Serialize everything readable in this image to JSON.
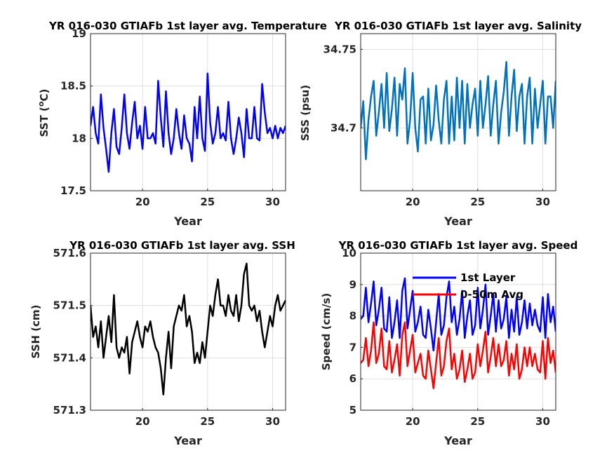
{
  "chart_data": [
    {
      "type": "line",
      "title": "YR 016-030 GTIAFb 1st layer avg. Temperature",
      "xlabel": "Year",
      "ylabel": "SST (",
      "ylabel_sup": "o",
      "ylabel_tail": "C)",
      "xlim": [
        16,
        31
      ],
      "ylim": [
        17.5,
        19
      ],
      "xticks": [
        20,
        25,
        30
      ],
      "yticks": [
        17.5,
        18,
        18.5,
        19
      ],
      "ytick_labels": [
        "17.5",
        "18",
        "18.5",
        "19"
      ],
      "grid": true,
      "series": [
        {
          "color": "#0000ff",
          "x": [
            16,
            16.2,
            16.4,
            16.6,
            16.8,
            17.0,
            17.2,
            17.4,
            17.6,
            17.8,
            18.0,
            18.2,
            18.4,
            18.6,
            18.8,
            19.0,
            19.2,
            19.4,
            19.6,
            19.8,
            20.0,
            20.2,
            20.4,
            20.6,
            20.8,
            21.0,
            21.2,
            21.4,
            21.6,
            21.8,
            22.0,
            22.2,
            22.4,
            22.6,
            22.8,
            23.0,
            23.2,
            23.4,
            23.6,
            23.8,
            24.0,
            24.2,
            24.4,
            24.6,
            24.8,
            25.0,
            25.2,
            25.4,
            25.6,
            25.8,
            26.0,
            26.2,
            26.4,
            26.6,
            26.8,
            27.0,
            27.2,
            27.4,
            27.6,
            27.8,
            28.0,
            28.2,
            28.4,
            28.6,
            28.8,
            29.0,
            29.2,
            29.4,
            29.6,
            29.8,
            30.0,
            30.2,
            30.4,
            30.6,
            30.8,
            31.0
          ],
          "y": [
            18.12,
            18.3,
            18.05,
            17.95,
            18.42,
            18.1,
            17.9,
            17.68,
            18.05,
            18.28,
            17.92,
            17.85,
            18.1,
            18.42,
            18.05,
            17.9,
            18.15,
            18.35,
            18.0,
            18.12,
            17.9,
            18.3,
            18.0,
            18.0,
            18.05,
            17.95,
            18.55,
            18.2,
            17.92,
            18.45,
            18.05,
            17.85,
            18.0,
            18.28,
            18.05,
            17.9,
            18.22,
            18.0,
            17.95,
            17.78,
            18.3,
            18.0,
            18.4,
            18.0,
            17.88,
            18.62,
            18.15,
            17.95,
            18.05,
            18.3,
            18.0,
            18.05,
            17.98,
            18.35,
            18.0,
            17.85,
            18.0,
            18.2,
            18.05,
            17.82,
            18.28,
            18.0,
            18.0,
            18.3,
            18.0,
            17.98,
            18.52,
            18.25,
            18.05,
            18.1,
            18.0,
            18.12,
            18.0,
            18.1,
            18.05,
            18.12
          ]
        }
      ]
    },
    {
      "type": "line",
      "title": "YR 016-030 GTIAFb 1st layer avg. Salinity",
      "xlabel": "Year",
      "ylabel": "SSS (psu)",
      "xlim": [
        16,
        31
      ],
      "ylim": [
        34.66,
        34.76
      ],
      "xticks": [
        20,
        25,
        30
      ],
      "yticks": [
        34.7,
        34.75
      ],
      "ytick_labels": [
        "34.7",
        "34.75"
      ],
      "grid": true,
      "series": [
        {
          "color": "#0072bd",
          "x": [
            16,
            16.2,
            16.4,
            16.6,
            16.8,
            17.0,
            17.2,
            17.4,
            17.6,
            17.8,
            18.0,
            18.2,
            18.4,
            18.6,
            18.8,
            19.0,
            19.2,
            19.4,
            19.6,
            19.8,
            20.0,
            20.2,
            20.4,
            20.6,
            20.8,
            21.0,
            21.2,
            21.4,
            21.6,
            21.8,
            22.0,
            22.2,
            22.4,
            22.6,
            22.8,
            23.0,
            23.2,
            23.4,
            23.6,
            23.8,
            24.0,
            24.2,
            24.4,
            24.6,
            24.8,
            25.0,
            25.2,
            25.4,
            25.6,
            25.8,
            26.0,
            26.2,
            26.4,
            26.6,
            26.8,
            27.0,
            27.2,
            27.4,
            27.6,
            27.8,
            28.0,
            28.2,
            28.4,
            28.6,
            28.8,
            29.0,
            29.2,
            29.4,
            29.6,
            29.8,
            30.0,
            30.2,
            30.4,
            30.6,
            30.8,
            31.0
          ],
          "y": [
            34.7,
            34.717,
            34.68,
            34.705,
            34.72,
            34.73,
            34.695,
            34.71,
            34.728,
            34.7,
            34.735,
            34.698,
            34.712,
            34.732,
            34.695,
            34.728,
            34.718,
            34.738,
            34.69,
            34.705,
            34.735,
            34.7,
            34.685,
            34.718,
            34.72,
            34.69,
            34.725,
            34.692,
            34.702,
            34.727,
            34.705,
            34.69,
            34.718,
            34.73,
            34.69,
            34.72,
            34.692,
            34.732,
            34.7,
            34.73,
            34.69,
            34.728,
            34.7,
            34.715,
            34.725,
            34.695,
            34.73,
            34.7,
            34.715,
            34.733,
            34.695,
            34.715,
            34.73,
            34.69,
            34.71,
            34.723,
            34.742,
            34.695,
            34.72,
            34.737,
            34.698,
            34.72,
            34.728,
            34.69,
            34.72,
            34.732,
            34.69,
            34.725,
            34.7,
            34.715,
            34.73,
            34.69,
            34.72,
            34.72,
            34.7,
            34.73
          ]
        }
      ]
    },
    {
      "type": "line",
      "title": "YR 016-030 GTIAFb 1st layer avg. SSH",
      "xlabel": "Year",
      "ylabel": "SSH (cm)",
      "xlim": [
        16,
        31
      ],
      "ylim": [
        571.3,
        571.6
      ],
      "xticks": [
        20,
        25,
        30
      ],
      "yticks": [
        571.3,
        571.4,
        571.5,
        571.6
      ],
      "ytick_labels": [
        "571.3",
        "571.4",
        "571.5",
        "571.6"
      ],
      "grid": true,
      "series": [
        {
          "color": "#000000",
          "x": [
            16,
            16.2,
            16.4,
            16.6,
            16.8,
            17.0,
            17.2,
            17.4,
            17.6,
            17.8,
            18.0,
            18.2,
            18.4,
            18.6,
            18.8,
            19.0,
            19.2,
            19.4,
            19.6,
            19.8,
            20.0,
            20.2,
            20.4,
            20.6,
            20.8,
            21.0,
            21.2,
            21.4,
            21.6,
            21.8,
            22.0,
            22.2,
            22.4,
            22.6,
            22.8,
            23.0,
            23.2,
            23.4,
            23.6,
            23.8,
            24.0,
            24.2,
            24.4,
            24.6,
            24.8,
            25.0,
            25.2,
            25.4,
            25.6,
            25.8,
            26.0,
            26.2,
            26.4,
            26.6,
            26.8,
            27.0,
            27.2,
            27.4,
            27.6,
            27.8,
            28.0,
            28.2,
            28.4,
            28.6,
            28.8,
            29.0,
            29.2,
            29.4,
            29.6,
            29.8,
            30.0,
            30.2,
            30.4,
            30.6,
            30.8,
            31.0
          ],
          "y": [
            571.5,
            571.44,
            571.46,
            571.42,
            571.47,
            571.4,
            571.44,
            571.48,
            571.43,
            571.52,
            571.42,
            571.4,
            571.42,
            571.41,
            571.44,
            571.37,
            571.43,
            571.45,
            571.47,
            571.44,
            571.42,
            571.46,
            571.45,
            571.47,
            571.44,
            571.42,
            571.41,
            571.38,
            571.33,
            571.4,
            571.45,
            571.38,
            571.46,
            571.48,
            571.5,
            571.49,
            571.52,
            571.46,
            571.48,
            571.45,
            571.39,
            571.41,
            571.39,
            571.43,
            571.4,
            571.45,
            571.5,
            571.48,
            571.52,
            571.55,
            571.5,
            571.5,
            571.48,
            571.52,
            571.49,
            571.48,
            571.52,
            571.47,
            571.5,
            571.56,
            571.58,
            571.5,
            571.49,
            571.5,
            571.47,
            571.49,
            571.45,
            571.42,
            571.45,
            571.48,
            571.46,
            571.5,
            571.52,
            571.49,
            571.5,
            571.51
          ]
        }
      ]
    },
    {
      "type": "line",
      "title": "YR 016-030 GTIAFb 1st layer avg. Speed",
      "xlabel": "Year",
      "ylabel": "Speed (cm/s)",
      "xlim": [
        16,
        31
      ],
      "ylim": [
        5,
        10
      ],
      "xticks": [
        20,
        25,
        30
      ],
      "yticks": [
        5,
        6,
        7,
        8,
        9,
        10
      ],
      "ytick_labels": [
        "5",
        "6",
        "7",
        "8",
        "9",
        "10"
      ],
      "grid": true,
      "legend": "top",
      "series": [
        {
          "name": "1st Layer",
          "color": "#0000ff",
          "x": [
            16,
            16.2,
            16.4,
            16.6,
            16.8,
            17.0,
            17.2,
            17.4,
            17.6,
            17.8,
            18.0,
            18.2,
            18.4,
            18.6,
            18.8,
            19.0,
            19.2,
            19.4,
            19.6,
            19.8,
            20.0,
            20.2,
            20.4,
            20.6,
            20.8,
            21.0,
            21.2,
            21.4,
            21.6,
            21.8,
            22.0,
            22.2,
            22.4,
            22.6,
            22.8,
            23.0,
            23.2,
            23.4,
            23.6,
            23.8,
            24.0,
            24.2,
            24.4,
            24.6,
            24.8,
            25.0,
            25.2,
            25.4,
            25.6,
            25.8,
            26.0,
            26.2,
            26.4,
            26.6,
            26.8,
            27.0,
            27.2,
            27.4,
            27.6,
            27.8,
            28.0,
            28.2,
            28.4,
            28.6,
            28.8,
            29.0,
            29.2,
            29.4,
            29.6,
            29.8,
            30.0,
            30.2,
            30.4,
            30.6,
            30.8,
            31.0
          ],
          "y": [
            7.9,
            8.0,
            8.9,
            7.8,
            8.4,
            9.1,
            7.7,
            8.2,
            8.9,
            7.6,
            7.5,
            8.6,
            7.3,
            7.8,
            8.5,
            7.3,
            8.8,
            9.2,
            7.6,
            8.2,
            8.8,
            7.5,
            7.8,
            8.3,
            7.4,
            7.3,
            8.2,
            7.6,
            6.9,
            7.8,
            8.7,
            7.4,
            7.7,
            8.6,
            9.1,
            7.8,
            8.3,
            7.4,
            7.9,
            8.8,
            7.3,
            8.0,
            8.5,
            7.4,
            7.7,
            8.9,
            7.6,
            8.2,
            9.0,
            7.4,
            8.0,
            8.7,
            7.5,
            8.5,
            7.6,
            7.9,
            8.6,
            7.3,
            8.2,
            7.5,
            8.6,
            7.4,
            7.8,
            8.5,
            7.6,
            8.4,
            7.7,
            8.2,
            7.7,
            7.5,
            8.6,
            7.3,
            8.7,
            7.8,
            8.3,
            7.5
          ]
        },
        {
          "name": "0-50m Avg",
          "color": "#ff0000",
          "x": [
            16,
            16.2,
            16.4,
            16.6,
            16.8,
            17.0,
            17.2,
            17.4,
            17.6,
            17.8,
            18.0,
            18.2,
            18.4,
            18.6,
            18.8,
            19.0,
            19.2,
            19.4,
            19.6,
            19.8,
            20.0,
            20.2,
            20.4,
            20.6,
            20.8,
            21.0,
            21.2,
            21.4,
            21.6,
            21.8,
            22.0,
            22.2,
            22.4,
            22.6,
            22.8,
            23.0,
            23.2,
            23.4,
            23.6,
            23.8,
            24.0,
            24.2,
            24.4,
            24.6,
            24.8,
            25.0,
            25.2,
            25.4,
            25.6,
            25.8,
            26.0,
            26.2,
            26.4,
            26.6,
            26.8,
            27.0,
            27.2,
            27.4,
            27.6,
            27.8,
            28.0,
            28.2,
            28.4,
            28.6,
            28.8,
            29.0,
            29.2,
            29.4,
            29.6,
            29.8,
            30.0,
            30.2,
            30.4,
            30.6,
            30.8,
            31.0
          ],
          "y": [
            6.5,
            6.6,
            7.3,
            6.4,
            6.9,
            7.8,
            6.5,
            6.8,
            7.6,
            6.4,
            6.3,
            7.2,
            6.2,
            6.6,
            7.1,
            6.1,
            7.4,
            7.8,
            6.4,
            6.9,
            7.4,
            6.2,
            6.5,
            6.8,
            6.1,
            6.0,
            6.9,
            6.3,
            5.7,
            6.5,
            7.3,
            6.1,
            6.4,
            7.2,
            7.6,
            6.3,
            6.8,
            6.0,
            6.3,
            6.9,
            5.9,
            6.3,
            6.8,
            6.0,
            6.2,
            7.1,
            6.4,
            6.9,
            7.5,
            6.2,
            6.7,
            7.3,
            6.4,
            7.1,
            6.4,
            6.6,
            7.2,
            6.1,
            6.8,
            6.3,
            7.1,
            6.0,
            6.3,
            7.0,
            6.4,
            7.0,
            6.4,
            6.8,
            6.3,
            6.2,
            7.2,
            6.0,
            7.3,
            6.5,
            6.9,
            6.2
          ]
        }
      ]
    }
  ]
}
